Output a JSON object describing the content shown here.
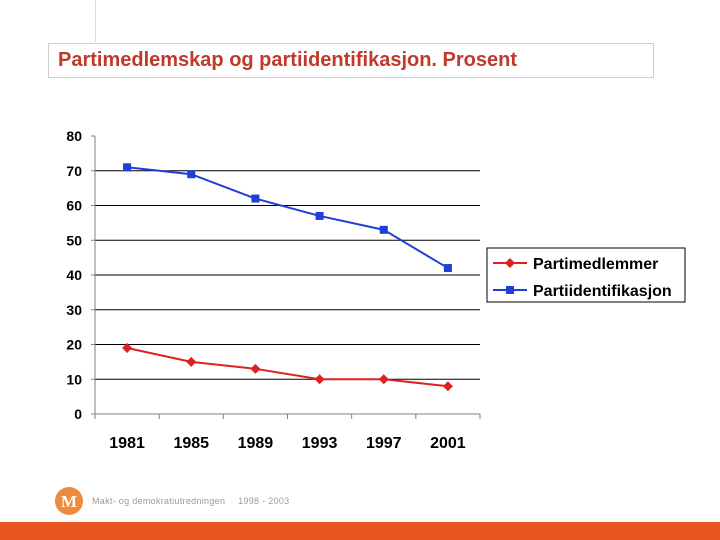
{
  "slide": {
    "title": "Partimedlemskap og partiidentifikasjon. Prosent",
    "footer_org": "Makt- og demokratiutredningen",
    "footer_years": "1998 - 2003",
    "logo_letter": "M"
  },
  "colors": {
    "title": "#c0392b",
    "footer_bar": "#e8551f",
    "logo": "#ef8a3a",
    "series_partimedlemmer": "#e02020",
    "series_partiidentifikasjon": "#1f3fd6"
  },
  "icons": {
    "logo": "makt-og-demokrati-logo-icon"
  },
  "chart_data": {
    "type": "line",
    "title": "",
    "xlabel": "",
    "ylabel": "",
    "categories": [
      "1981",
      "1985",
      "1989",
      "1993",
      "1997",
      "2001"
    ],
    "ylim": [
      0,
      80
    ],
    "yticks": [
      0,
      10,
      20,
      30,
      40,
      50,
      60,
      70,
      80
    ],
    "grid": "horizontal",
    "legend_position": "right",
    "series": [
      {
        "name": "Partimedlemmer",
        "marker": "diamond",
        "color": "#e02020",
        "values": [
          19,
          15,
          13,
          10,
          10,
          8
        ]
      },
      {
        "name": "Partiidentifikasjon",
        "marker": "square",
        "color": "#1f3fd6",
        "values": [
          71,
          69,
          62,
          57,
          53,
          42
        ]
      }
    ]
  }
}
